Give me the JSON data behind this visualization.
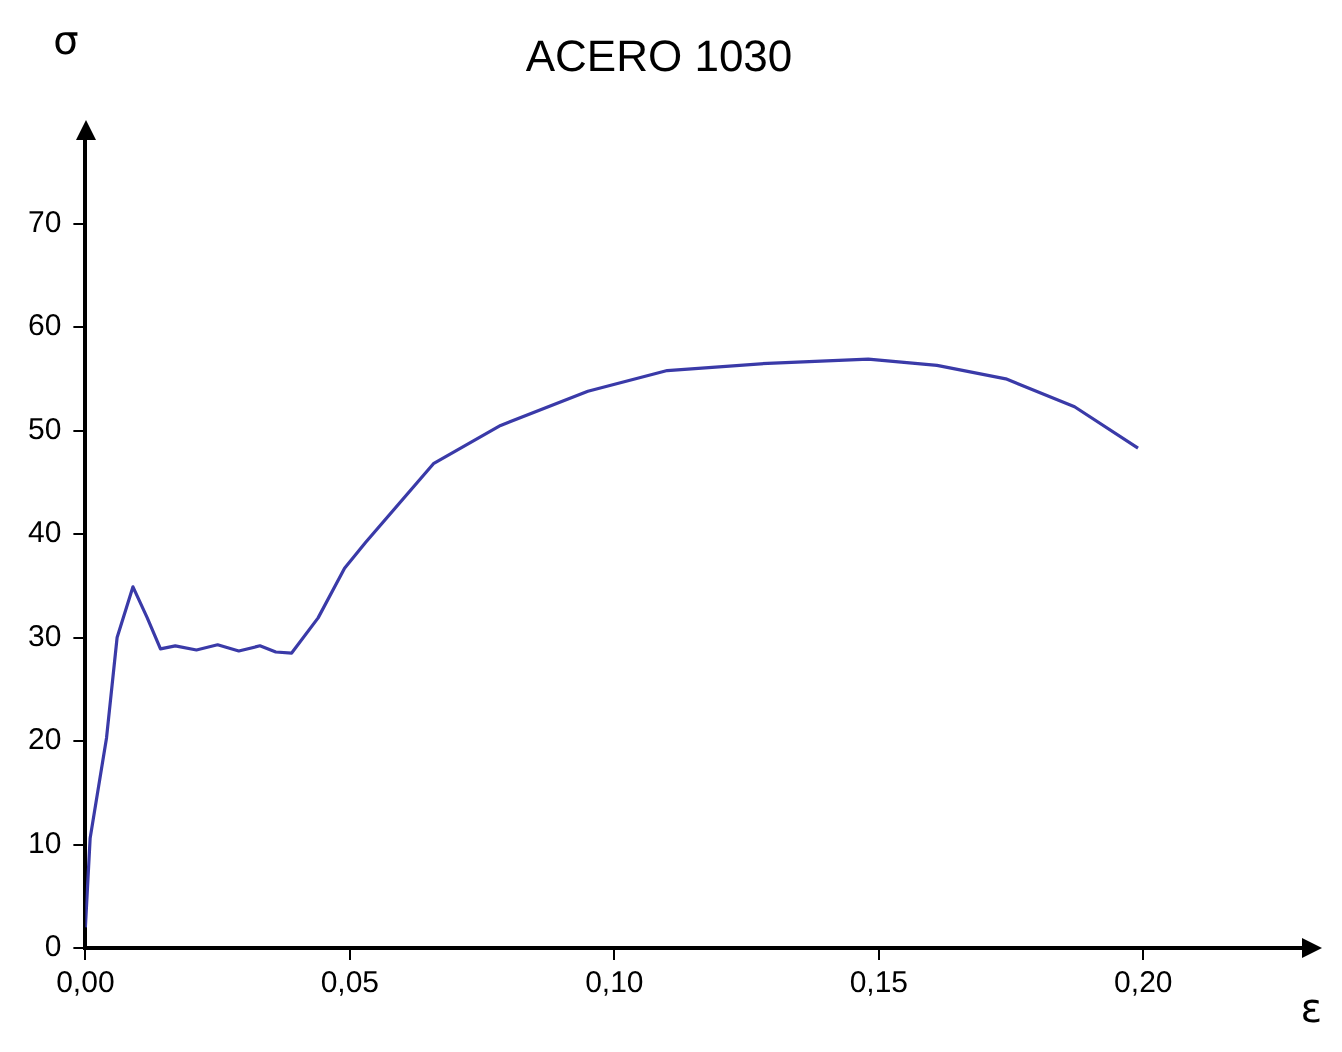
{
  "chart_data": {
    "type": "line",
    "title": "ACERO 1030",
    "xlabel": "ε",
    "ylabel": "σ",
    "series": [
      {
        "color": "#3a3aa8",
        "x": [
          0,
          0.0009,
          0.004,
          0.006,
          0.009,
          0.0117,
          0.0142,
          0.017,
          0.021,
          0.025,
          0.029,
          0.033,
          0.036,
          0.039,
          0.044,
          0.049,
          0.053,
          0.0658,
          0.0785,
          0.095,
          0.11,
          0.129,
          0.148,
          0.161,
          0.174,
          0.187,
          0.199
        ],
        "values": [
          2,
          10.6,
          20.3,
          30,
          34.9,
          31.9,
          28.9,
          29.2,
          28.8,
          29.3,
          28.7,
          29.2,
          28.6,
          28.5,
          31.9,
          36.7,
          39.2,
          46.8,
          50.5,
          53.8,
          55.8,
          56.5,
          56.9,
          56.3,
          55,
          52.3,
          48.3
        ]
      }
    ],
    "xlim": [
      0,
      0.23
    ],
    "ylim": [
      0,
      78
    ],
    "xticks": [
      {
        "value": 0,
        "label": "0,00"
      },
      {
        "value": 0.05,
        "label": "0,05"
      },
      {
        "value": 0.1,
        "label": "0,10"
      },
      {
        "value": 0.15,
        "label": "0,15"
      },
      {
        "value": 0.2,
        "label": "0,20"
      }
    ],
    "yticks": [
      0,
      10,
      20,
      30,
      40,
      50,
      60,
      70
    ],
    "grid": false,
    "legend": false,
    "marker": "none",
    "line_style": "solid"
  }
}
